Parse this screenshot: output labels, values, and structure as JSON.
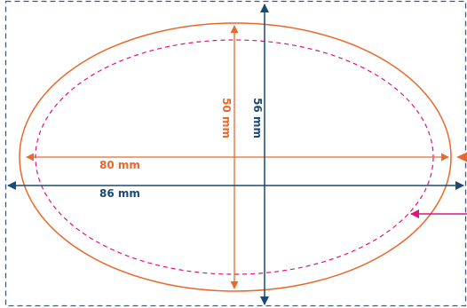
{
  "colors": {
    "orange": "#e8692d",
    "navy": "#1b4a73",
    "magenta": "#e0137e",
    "bleed": "#3f5b7a",
    "background": "#ffffff"
  },
  "labels": {
    "inner_width": "80 mm",
    "inner_height": "50 mm",
    "outer_width": "86 mm",
    "outer_height": "56 mm"
  }
}
